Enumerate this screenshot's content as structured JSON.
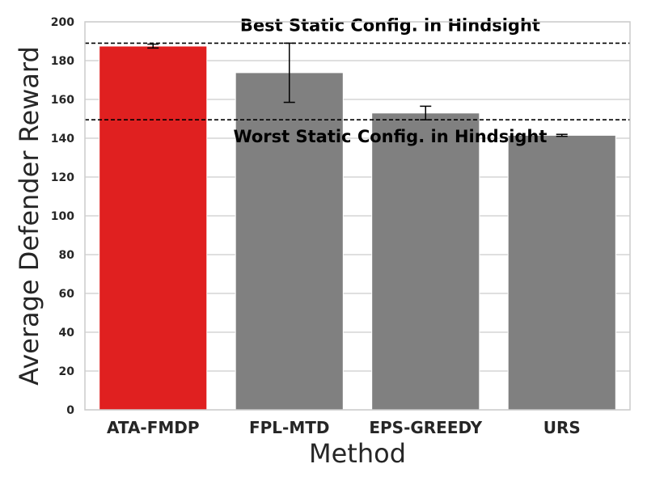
{
  "chart_data": {
    "type": "bar",
    "categories": [
      "ATA-FMDP",
      "FPL-MTD",
      "EPS-GREEDY",
      "URS"
    ],
    "values": [
      187.5,
      173.8,
      153.0,
      141.5
    ],
    "errors": [
      [
        186.5,
        188.5
      ],
      [
        158.5,
        189.0
      ],
      [
        149.5,
        156.5
      ],
      [
        141.0,
        142.0
      ]
    ],
    "bar_colors": [
      "#e02020",
      "#808080",
      "#808080",
      "#808080"
    ],
    "xlabel": "Method",
    "ylabel": "Average Defender Reward",
    "ylim": [
      0,
      200
    ],
    "yticks": [
      0,
      20,
      40,
      60,
      80,
      100,
      120,
      140,
      160,
      180,
      200
    ],
    "grid": true,
    "reference_lines": [
      {
        "value": 189.0,
        "label": "Best Static Config. in Hindsight",
        "label_position": "above"
      },
      {
        "value": 149.5,
        "label": "Worst Static Config. in Hindsight",
        "label_position": "below"
      }
    ]
  }
}
